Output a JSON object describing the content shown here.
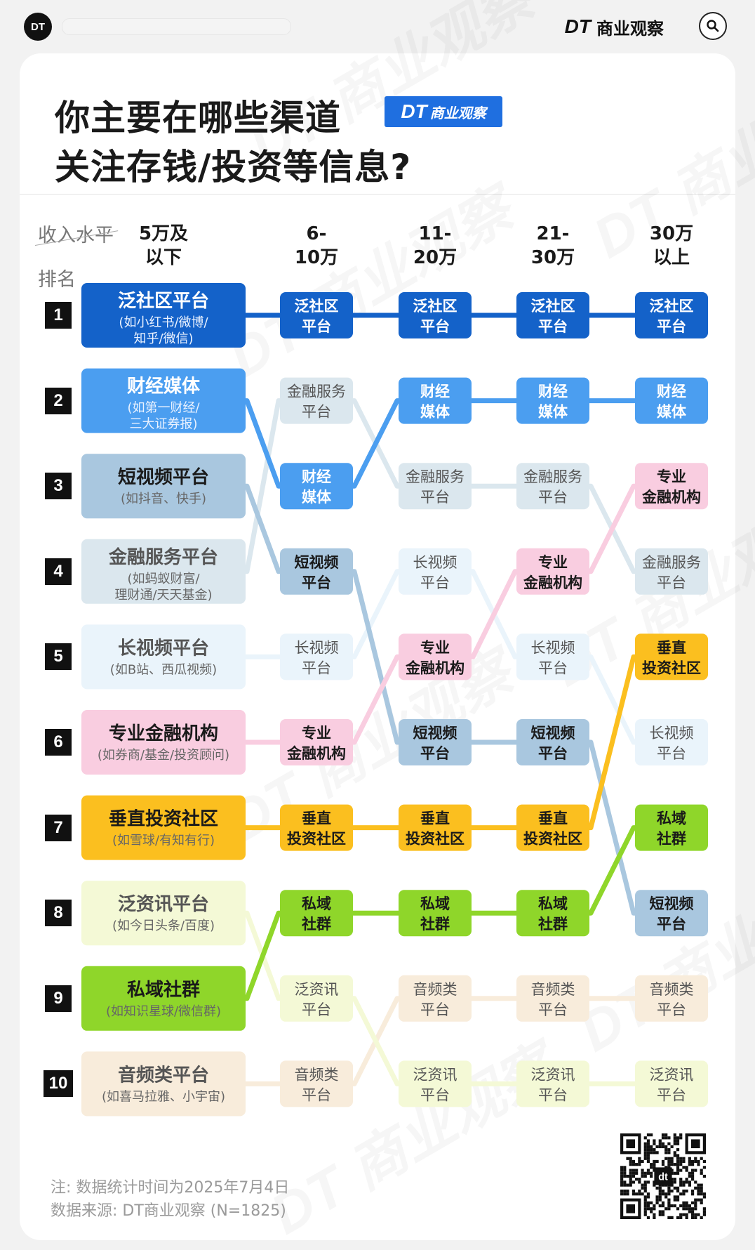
{
  "topbar": {
    "avatar": "DT",
    "brand_logo": "DT",
    "brand_name": "商业观察"
  },
  "title": {
    "line1": "你主要在哪些渠道",
    "line2": "关注存钱/投资等信息?",
    "badge_logo": "DT",
    "badge_text": "商业观察"
  },
  "header": {
    "income_label": "收入水平",
    "rank_label": "排名"
  },
  "colors": {
    "泛社区平台": {
      "bg": "#1462c9",
      "fg": "#ffffff"
    },
    "财经媒体": {
      "bg": "#4b9ef0",
      "fg": "#ffffff"
    },
    "短视频平台": {
      "bg": "#a9c7df",
      "fg": "#1a1a1a"
    },
    "金融服务平台": {
      "bg": "#dbe7ee",
      "fg": "#555555"
    },
    "长视频平台": {
      "bg": "#eaf4fb",
      "fg": "#555555"
    },
    "专业金融机构": {
      "bg": "#f9cde0",
      "fg": "#1a1a1a"
    },
    "垂直投资社区": {
      "bg": "#fbbf1f",
      "fg": "#1a1a1a"
    },
    "泛资讯平台": {
      "bg": "#f4f9d6",
      "fg": "#555555"
    },
    "私域社群": {
      "bg": "#8fd62a",
      "fg": "#1a1a1a"
    },
    "音频类平台": {
      "bg": "#f8ecdb",
      "fg": "#555555"
    }
  },
  "chart_data": {
    "type": "table",
    "title": "你主要在哪些渠道关注存钱/投资等信息?",
    "xlabel": "收入水平",
    "ylabel": "排名",
    "ranks": [
      "1",
      "2",
      "3",
      "4",
      "5",
      "6",
      "7",
      "8",
      "9",
      "10"
    ],
    "income_groups": [
      "5万及以下",
      "6-10万",
      "11-20万",
      "21-30万",
      "30万以上"
    ],
    "column_headers": [
      [
        "5万及",
        "以下"
      ],
      [
        "6-",
        "10万"
      ],
      [
        "11-",
        "20万"
      ],
      [
        "21-",
        "30万"
      ],
      [
        "30万",
        "以上"
      ]
    ],
    "first_column": [
      {
        "channel": "泛社区平台",
        "name": "泛社区平台",
        "sub": [
          "(如小红书/微博/",
          "知乎/微信)"
        ]
      },
      {
        "channel": "财经媒体",
        "name": "财经媒体",
        "sub": [
          "(如第一财经/",
          "三大证券报)"
        ]
      },
      {
        "channel": "短视频平台",
        "name": "短视频平台",
        "sub": [
          "(如抖音、快手)"
        ]
      },
      {
        "channel": "金融服务平台",
        "name": "金融服务平台",
        "sub": [
          "(如蚂蚁财富/",
          "理财通/天天基金)"
        ]
      },
      {
        "channel": "长视频平台",
        "name": "长视频平台",
        "sub": [
          "(如B站、西瓜视频)"
        ]
      },
      {
        "channel": "专业金融机构",
        "name": "专业金融机构",
        "sub": [
          "(如券商/基金/投资顾问)"
        ]
      },
      {
        "channel": "垂直投资社区",
        "name": "垂直投资社区",
        "sub": [
          "(如雪球/有知有行)"
        ]
      },
      {
        "channel": "泛资讯平台",
        "name": "泛资讯平台",
        "sub": [
          "(如今日头条/百度)"
        ]
      },
      {
        "channel": "私域社群",
        "name": "私域社群",
        "sub": [
          "(如知识星球/微信群)"
        ]
      },
      {
        "channel": "音频类平台",
        "name": "音频类平台",
        "sub": [
          "(如喜马拉雅、小宇宙)"
        ]
      }
    ],
    "columns": [
      {
        "group": "6-10万",
        "cells": [
          {
            "channel": "泛社区平台",
            "label": [
              "泛社区",
              "平台"
            ]
          },
          {
            "channel": "金融服务平台",
            "label": [
              "金融服务",
              "平台"
            ]
          },
          {
            "channel": "财经媒体",
            "label": [
              "财经",
              "媒体"
            ]
          },
          {
            "channel": "短视频平台",
            "label": [
              "短视频",
              "平台"
            ]
          },
          {
            "channel": "长视频平台",
            "label": [
              "长视频",
              "平台"
            ]
          },
          {
            "channel": "专业金融机构",
            "label": [
              "专业",
              "金融机构"
            ]
          },
          {
            "channel": "垂直投资社区",
            "label": [
              "垂直",
              "投资社区"
            ]
          },
          {
            "channel": "私域社群",
            "label": [
              "私域",
              "社群"
            ]
          },
          {
            "channel": "泛资讯平台",
            "label": [
              "泛资讯",
              "平台"
            ]
          },
          {
            "channel": "音频类平台",
            "label": [
              "音频类",
              "平台"
            ]
          }
        ]
      },
      {
        "group": "11-20万",
        "cells": [
          {
            "channel": "泛社区平台",
            "label": [
              "泛社区",
              "平台"
            ]
          },
          {
            "channel": "财经媒体",
            "label": [
              "财经",
              "媒体"
            ]
          },
          {
            "channel": "金融服务平台",
            "label": [
              "金融服务",
              "平台"
            ]
          },
          {
            "channel": "长视频平台",
            "label": [
              "长视频",
              "平台"
            ]
          },
          {
            "channel": "专业金融机构",
            "label": [
              "专业",
              "金融机构"
            ]
          },
          {
            "channel": "短视频平台",
            "label": [
              "短视频",
              "平台"
            ]
          },
          {
            "channel": "垂直投资社区",
            "label": [
              "垂直",
              "投资社区"
            ]
          },
          {
            "channel": "私域社群",
            "label": [
              "私域",
              "社群"
            ]
          },
          {
            "channel": "音频类平台",
            "label": [
              "音频类",
              "平台"
            ]
          },
          {
            "channel": "泛资讯平台",
            "label": [
              "泛资讯",
              "平台"
            ]
          }
        ]
      },
      {
        "group": "21-30万",
        "cells": [
          {
            "channel": "泛社区平台",
            "label": [
              "泛社区",
              "平台"
            ]
          },
          {
            "channel": "财经媒体",
            "label": [
              "财经",
              "媒体"
            ]
          },
          {
            "channel": "金融服务平台",
            "label": [
              "金融服务",
              "平台"
            ]
          },
          {
            "channel": "专业金融机构",
            "label": [
              "专业",
              "金融机构"
            ]
          },
          {
            "channel": "长视频平台",
            "label": [
              "长视频",
              "平台"
            ]
          },
          {
            "channel": "短视频平台",
            "label": [
              "短视频",
              "平台"
            ]
          },
          {
            "channel": "垂直投资社区",
            "label": [
              "垂直",
              "投资社区"
            ]
          },
          {
            "channel": "私域社群",
            "label": [
              "私域",
              "社群"
            ]
          },
          {
            "channel": "音频类平台",
            "label": [
              "音频类",
              "平台"
            ]
          },
          {
            "channel": "泛资讯平台",
            "label": [
              "泛资讯",
              "平台"
            ]
          }
        ]
      },
      {
        "group": "30万以上",
        "cells": [
          {
            "channel": "泛社区平台",
            "label": [
              "泛社区",
              "平台"
            ]
          },
          {
            "channel": "财经媒体",
            "label": [
              "财经",
              "媒体"
            ]
          },
          {
            "channel": "专业金融机构",
            "label": [
              "专业",
              "金融机构"
            ]
          },
          {
            "channel": "金融服务平台",
            "label": [
              "金融服务",
              "平台"
            ]
          },
          {
            "channel": "垂直投资社区",
            "label": [
              "垂直",
              "投资社区"
            ]
          },
          {
            "channel": "长视频平台",
            "label": [
              "长视频",
              "平台"
            ]
          },
          {
            "channel": "私域社群",
            "label": [
              "私域",
              "社群"
            ]
          },
          {
            "channel": "短视频平台",
            "label": [
              "短视频",
              "平台"
            ]
          },
          {
            "channel": "音频类平台",
            "label": [
              "音频类",
              "平台"
            ]
          },
          {
            "channel": "泛资讯平台",
            "label": [
              "泛资讯",
              "平台"
            ]
          }
        ]
      }
    ]
  },
  "footer": {
    "note": "注: 数据统计时间为2025年7月4日",
    "source": "数据来源: DT商业观察 (N=1825)"
  },
  "watermark": "DT 商业观察"
}
